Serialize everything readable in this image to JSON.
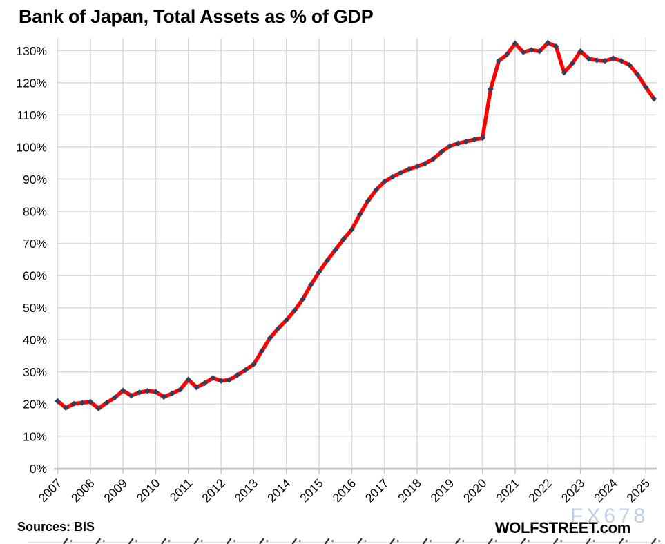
{
  "title": "Bank of Japan, Total Assets as % of GDP",
  "footer": {
    "sources": "Sources: BIS",
    "brand": "WOLFSTREET.com",
    "watermark": "FX678"
  },
  "y_axis": {
    "tick_labels": [
      "0%",
      "10%",
      "20%",
      "30%",
      "40%",
      "50%",
      "60%",
      "70%",
      "80%",
      "90%",
      "100%",
      "110%",
      "120%",
      "130%"
    ]
  },
  "x_axis": {
    "tick_labels": [
      "2007",
      "2008",
      "2009",
      "2010",
      "2011",
      "2012",
      "2013",
      "2014",
      "2015",
      "2016",
      "2017",
      "2018",
      "2019",
      "2020",
      "2021",
      "2022",
      "2023",
      "2024",
      "2025"
    ]
  },
  "chart_data": {
    "type": "line",
    "title": "Bank of Japan, Total Assets as % of GDP",
    "series_name": "BoJ total assets as % of GDP",
    "unit": "percent of GDP",
    "frequency": "quarterly",
    "start_period": "2007 Q1",
    "end_period": "2025 Q2",
    "ylim": [
      0,
      130
    ],
    "grid": true,
    "legend": "none",
    "line_color": "#ff0000",
    "marker_color": "#2f3f5c",
    "gridline_color": "#d9d9d9",
    "values_by_year": {
      "2007": [
        20.9,
        18.8,
        20.1,
        20.4
      ],
      "2008": [
        20.7,
        18.6,
        20.4,
        22.0
      ],
      "2009": [
        24.2,
        22.6,
        23.6,
        24.1
      ],
      "2010": [
        23.8,
        22.2,
        23.3,
        24.5
      ],
      "2011": [
        27.6,
        25.2,
        26.5,
        28.1
      ],
      "2012": [
        27.2,
        27.5,
        29.0,
        30.6
      ],
      "2013": [
        32.4,
        36.5,
        40.6,
        43.5
      ],
      "2014": [
        46.1,
        49.1,
        52.6,
        57.1
      ],
      "2015": [
        61.1,
        64.7,
        68.0,
        71.3
      ],
      "2016": [
        74.3,
        79.0,
        83.3,
        86.7
      ],
      "2017": [
        89.2,
        90.7,
        92.0,
        93.1
      ],
      "2018": [
        93.9,
        94.9,
        96.3,
        98.5
      ],
      "2019": [
        100.3,
        101.1,
        101.7,
        102.3
      ],
      "2020": [
        102.8,
        118.0,
        126.8,
        128.8
      ],
      "2021": [
        132.2,
        129.5,
        130.2,
        129.8
      ],
      "2022": [
        132.4,
        131.3,
        123.2,
        126.0
      ],
      "2023": [
        129.8,
        127.5,
        127.0,
        126.8
      ],
      "2024": [
        127.6,
        126.8,
        125.5,
        122.5
      ],
      "2025": [
        118.6,
        115.0
      ]
    }
  }
}
